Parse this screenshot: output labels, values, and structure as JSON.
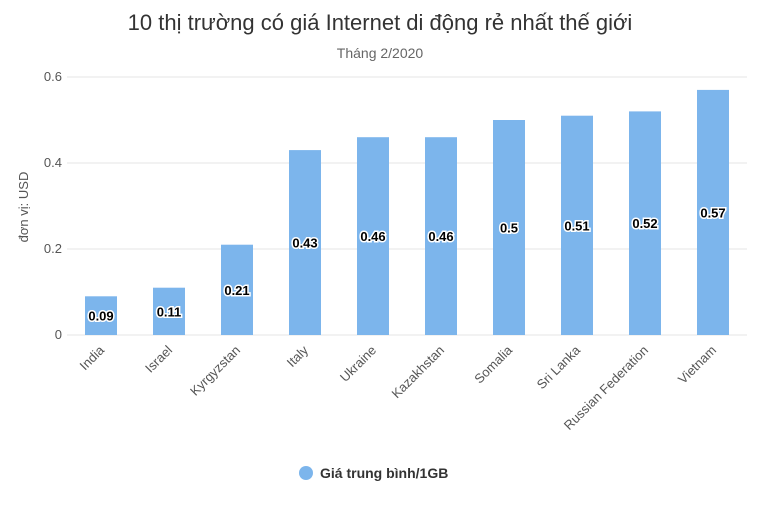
{
  "chart_data": {
    "type": "bar",
    "title": "10 thị trường có giá Internet di động rẻ nhất thế giới",
    "subtitle": "Tháng 2/2020",
    "ylabel": "đơn vị: USD",
    "xlabel": "",
    "ylim": [
      0,
      0.6
    ],
    "yticks": [
      "0",
      "0.2",
      "0.4",
      "0.6"
    ],
    "grid": true,
    "legend_position": "bottom",
    "bar_color": "#7cb5ec",
    "categories": [
      "India",
      "Israel",
      "Kyrgyzstan",
      "Italy",
      "Ukraine",
      "Kazakhstan",
      "Somalia",
      "Sri Lanka",
      "Russian Federation",
      "Vietnam"
    ],
    "series": [
      {
        "name": "Giá trung bình/1GB",
        "values": [
          0.09,
          0.11,
          0.21,
          0.43,
          0.46,
          0.46,
          0.5,
          0.51,
          0.52,
          0.57
        ],
        "labels": [
          "0.09",
          "0.11",
          "0.21",
          "0.43",
          "0.46",
          "0.46",
          "0.5",
          "0.51",
          "0.52",
          "0.57"
        ]
      }
    ]
  }
}
